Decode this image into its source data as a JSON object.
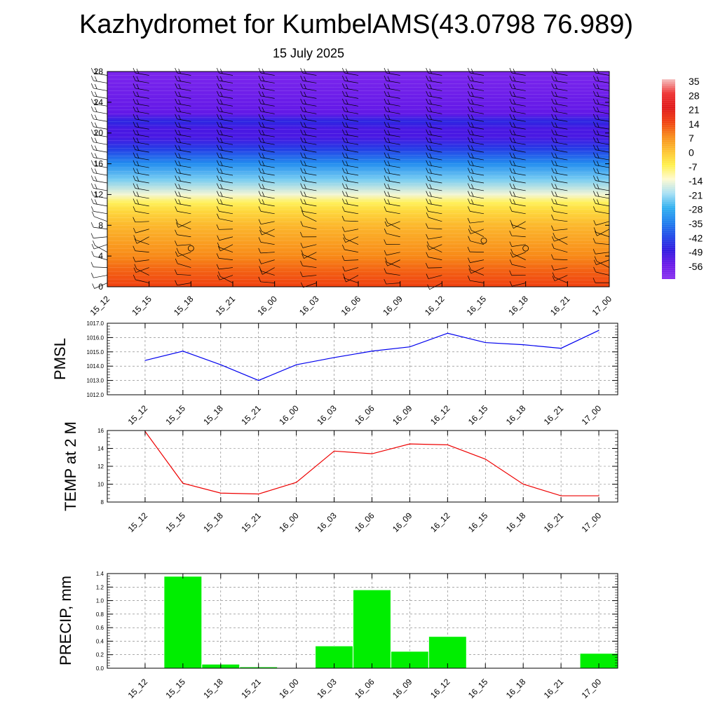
{
  "title": "Kazhydromet for KumbelAMS(43.0798 76.989)",
  "subtitle": "15 July 2025",
  "chart_data": [
    {
      "type": "heatmap",
      "x_categories": [
        "15_12",
        "15_15",
        "15_18",
        "15_21",
        "16_00",
        "16_03",
        "16_06",
        "16_09",
        "16_12",
        "16_15",
        "16_18",
        "16_21",
        "17_00"
      ],
      "yticks": [
        "0",
        "4",
        "8",
        "12",
        "16",
        "20",
        "24",
        "28"
      ],
      "ylim": [
        0,
        28
      ],
      "colorbar": {
        "labels": [
          "35",
          "28",
          "21",
          "14",
          "7",
          "0",
          "-7",
          "-14",
          "-21",
          "-28",
          "-35",
          "-42",
          "-49",
          "-56"
        ],
        "stops": [
          {
            "v": 35,
            "color": "#f5c0c0"
          },
          {
            "v": 28,
            "color": "#ee3030"
          },
          {
            "v": 21,
            "color": "#e01818"
          },
          {
            "v": 14,
            "color": "#f04010"
          },
          {
            "v": 7,
            "color": "#f88a18"
          },
          {
            "v": 0,
            "color": "#fdc030"
          },
          {
            "v": -7,
            "color": "#fff04a"
          },
          {
            "v": -14,
            "color": "#fffad0"
          },
          {
            "v": -21,
            "color": "#a8e0f4"
          },
          {
            "v": -28,
            "color": "#30b0f0"
          },
          {
            "v": -35,
            "color": "#1e80ee"
          },
          {
            "v": -42,
            "color": "#2048e8"
          },
          {
            "v": -49,
            "color": "#3018e0"
          },
          {
            "v": -56,
            "color": "#6a18e8"
          },
          {
            "v": -63,
            "color": "#8a30f0"
          }
        ]
      },
      "temperature_profile": [
        {
          "h": 0,
          "t": 14
        },
        {
          "h": 2,
          "t": 11
        },
        {
          "h": 4,
          "t": 7
        },
        {
          "h": 6,
          "t": 4
        },
        {
          "h": 8,
          "t": 1
        },
        {
          "h": 10,
          "t": -4
        },
        {
          "h": 11,
          "t": -8
        },
        {
          "h": 12,
          "t": -15
        },
        {
          "h": 14,
          "t": -24
        },
        {
          "h": 16,
          "t": -33
        },
        {
          "h": 18,
          "t": -44
        },
        {
          "h": 19.5,
          "t": -52
        },
        {
          "h": 20.5,
          "t": -52
        },
        {
          "h": 21.5,
          "t": -47
        },
        {
          "h": 22.5,
          "t": -55
        },
        {
          "h": 28,
          "t": -60
        }
      ],
      "wind_barbs": "present"
    },
    {
      "type": "line",
      "ylabel": "PMSL",
      "categories": [
        "15_12",
        "15_15",
        "15_18",
        "15_21",
        "16_00",
        "16_03",
        "16_06",
        "16_09",
        "16_12",
        "16_15",
        "16_18",
        "16_21",
        "17_00"
      ],
      "yticks": [
        "1012.0",
        "1013.0",
        "1014.0",
        "1015.0",
        "1016.0",
        "1017.0"
      ],
      "ylim": [
        1012.0,
        1017.0
      ],
      "values": [
        1014.4,
        1015.05,
        1014.1,
        1013.0,
        1014.1,
        1014.6,
        1015.05,
        1015.35,
        1016.3,
        1015.65,
        1015.5,
        1015.25,
        1016.5
      ],
      "color": "#0000ee",
      "grid": true
    },
    {
      "type": "line",
      "ylabel": "TEMP at 2 M",
      "categories": [
        "15_12",
        "15_15",
        "15_18",
        "15_21",
        "16_00",
        "16_03",
        "16_06",
        "16_09",
        "16_12",
        "16_15",
        "16_18",
        "16_21",
        "17_00"
      ],
      "yticks": [
        "8",
        "10",
        "12",
        "14",
        "16"
      ],
      "ylim": [
        8,
        16
      ],
      "values": [
        15.9,
        10.1,
        9.0,
        8.9,
        10.2,
        13.7,
        13.4,
        14.5,
        14.4,
        12.8,
        10.0,
        8.7,
        8.7
      ],
      "color": "#ee0000",
      "grid": true
    },
    {
      "type": "bar",
      "ylabel": "PRECIP, mm",
      "categories": [
        "15_12",
        "15_15",
        "15_18",
        "15_21",
        "16_00",
        "16_03",
        "16_06",
        "16_09",
        "16_12",
        "16_15",
        "16_18",
        "16_21",
        "17_00"
      ],
      "yticks": [
        "0.0",
        "0.2",
        "0.4",
        "0.6",
        "0.8",
        "1.0",
        "1.2",
        "1.4"
      ],
      "ylim": [
        0,
        1.4
      ],
      "values": [
        0,
        1.36,
        0.06,
        0.02,
        0,
        0.33,
        1.16,
        0.25,
        0.47,
        0,
        0,
        0,
        0.22
      ],
      "color": "#00ee00",
      "grid": true
    }
  ]
}
